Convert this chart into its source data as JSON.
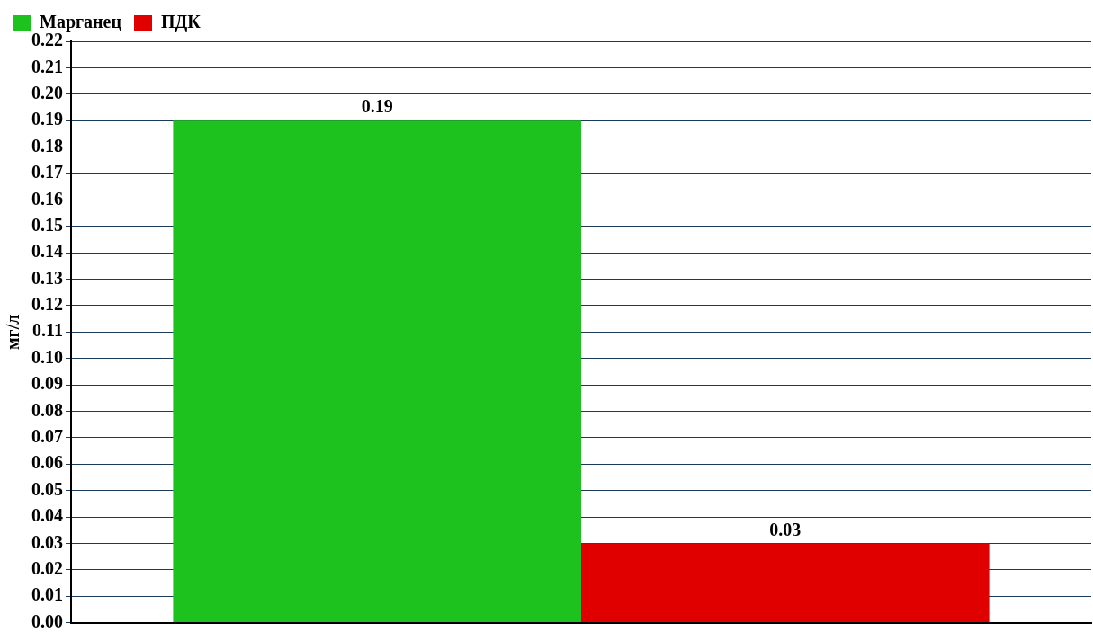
{
  "chart_data": {
    "type": "bar",
    "ylabel": "мг/л",
    "categories": [
      null
    ],
    "series": [
      {
        "name": "Марганец",
        "color": "#1ec21e",
        "values": [
          0.19
        ]
      },
      {
        "name": "ПДК",
        "color": "#e00000",
        "values": [
          0.03
        ]
      }
    ],
    "ylim": [
      0,
      0.22
    ],
    "yticks": [
      {
        "value": 0,
        "label": "0.00"
      },
      {
        "value": 0.01,
        "label": "0.01"
      },
      {
        "value": 0.02,
        "label": "0.02"
      },
      {
        "value": 0.03,
        "label": "0.03"
      },
      {
        "value": 0.04,
        "label": "0.04"
      },
      {
        "value": 0.05,
        "label": "0.05"
      },
      {
        "value": 0.06,
        "label": "0.06"
      },
      {
        "value": 0.07,
        "label": "0.07"
      },
      {
        "value": 0.08,
        "label": "0.08"
      },
      {
        "value": 0.09,
        "label": "0.09"
      },
      {
        "value": 0.1,
        "label": "0.10"
      },
      {
        "value": 0.11,
        "label": "0.11"
      },
      {
        "value": 0.12,
        "label": "0.12"
      },
      {
        "value": 0.13,
        "label": "0.13"
      },
      {
        "value": 0.14,
        "label": "0.14"
      },
      {
        "value": 0.15,
        "label": "0.15"
      },
      {
        "value": 0.16,
        "label": "0.16"
      },
      {
        "value": 0.17,
        "label": "0.17"
      },
      {
        "value": 0.18,
        "label": "0.18"
      },
      {
        "value": 0.19,
        "label": "0.19"
      },
      {
        "value": 0.2,
        "label": "0.20"
      },
      {
        "value": 0.21,
        "label": "0.21"
      },
      {
        "value": 0.22,
        "label": "0.22"
      }
    ],
    "grid": "y",
    "legend": "top left",
    "data_labels": true
  }
}
